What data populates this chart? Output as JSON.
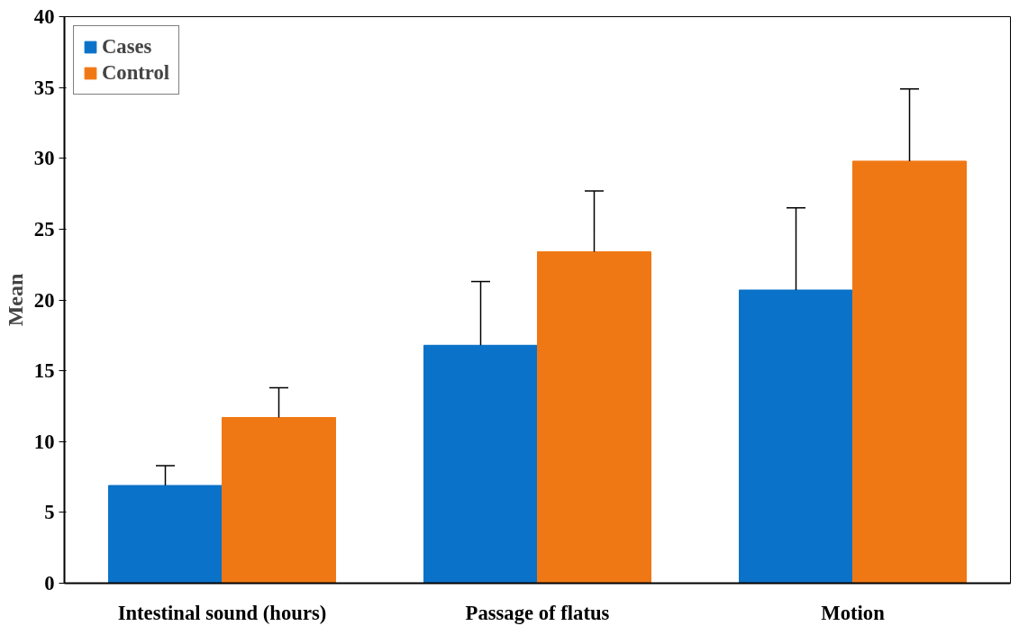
{
  "chart_data": {
    "type": "bar",
    "ylabel": "Mean",
    "categories": [
      "Intestinal sound (hours)",
      "Passage of flatus",
      "Motion"
    ],
    "series": [
      {
        "name": "Cases",
        "color": "#0a72c8",
        "values": [
          6.9,
          16.8,
          20.7
        ],
        "errors": [
          [
            6.9,
            8.3
          ],
          [
            16.8,
            21.3
          ],
          [
            20.7,
            26.5
          ]
        ]
      },
      {
        "name": "Control",
        "color": "#f07814",
        "values": [
          11.7,
          23.4,
          29.8
        ],
        "errors": [
          [
            11.7,
            13.8
          ],
          [
            23.4,
            27.7
          ],
          [
            29.8,
            34.9
          ]
        ]
      }
    ],
    "ylim": [
      0,
      40
    ],
    "yticks": [
      0,
      5,
      10,
      15,
      20,
      25,
      30,
      35,
      40
    ],
    "grid": false,
    "legend": "top left"
  }
}
